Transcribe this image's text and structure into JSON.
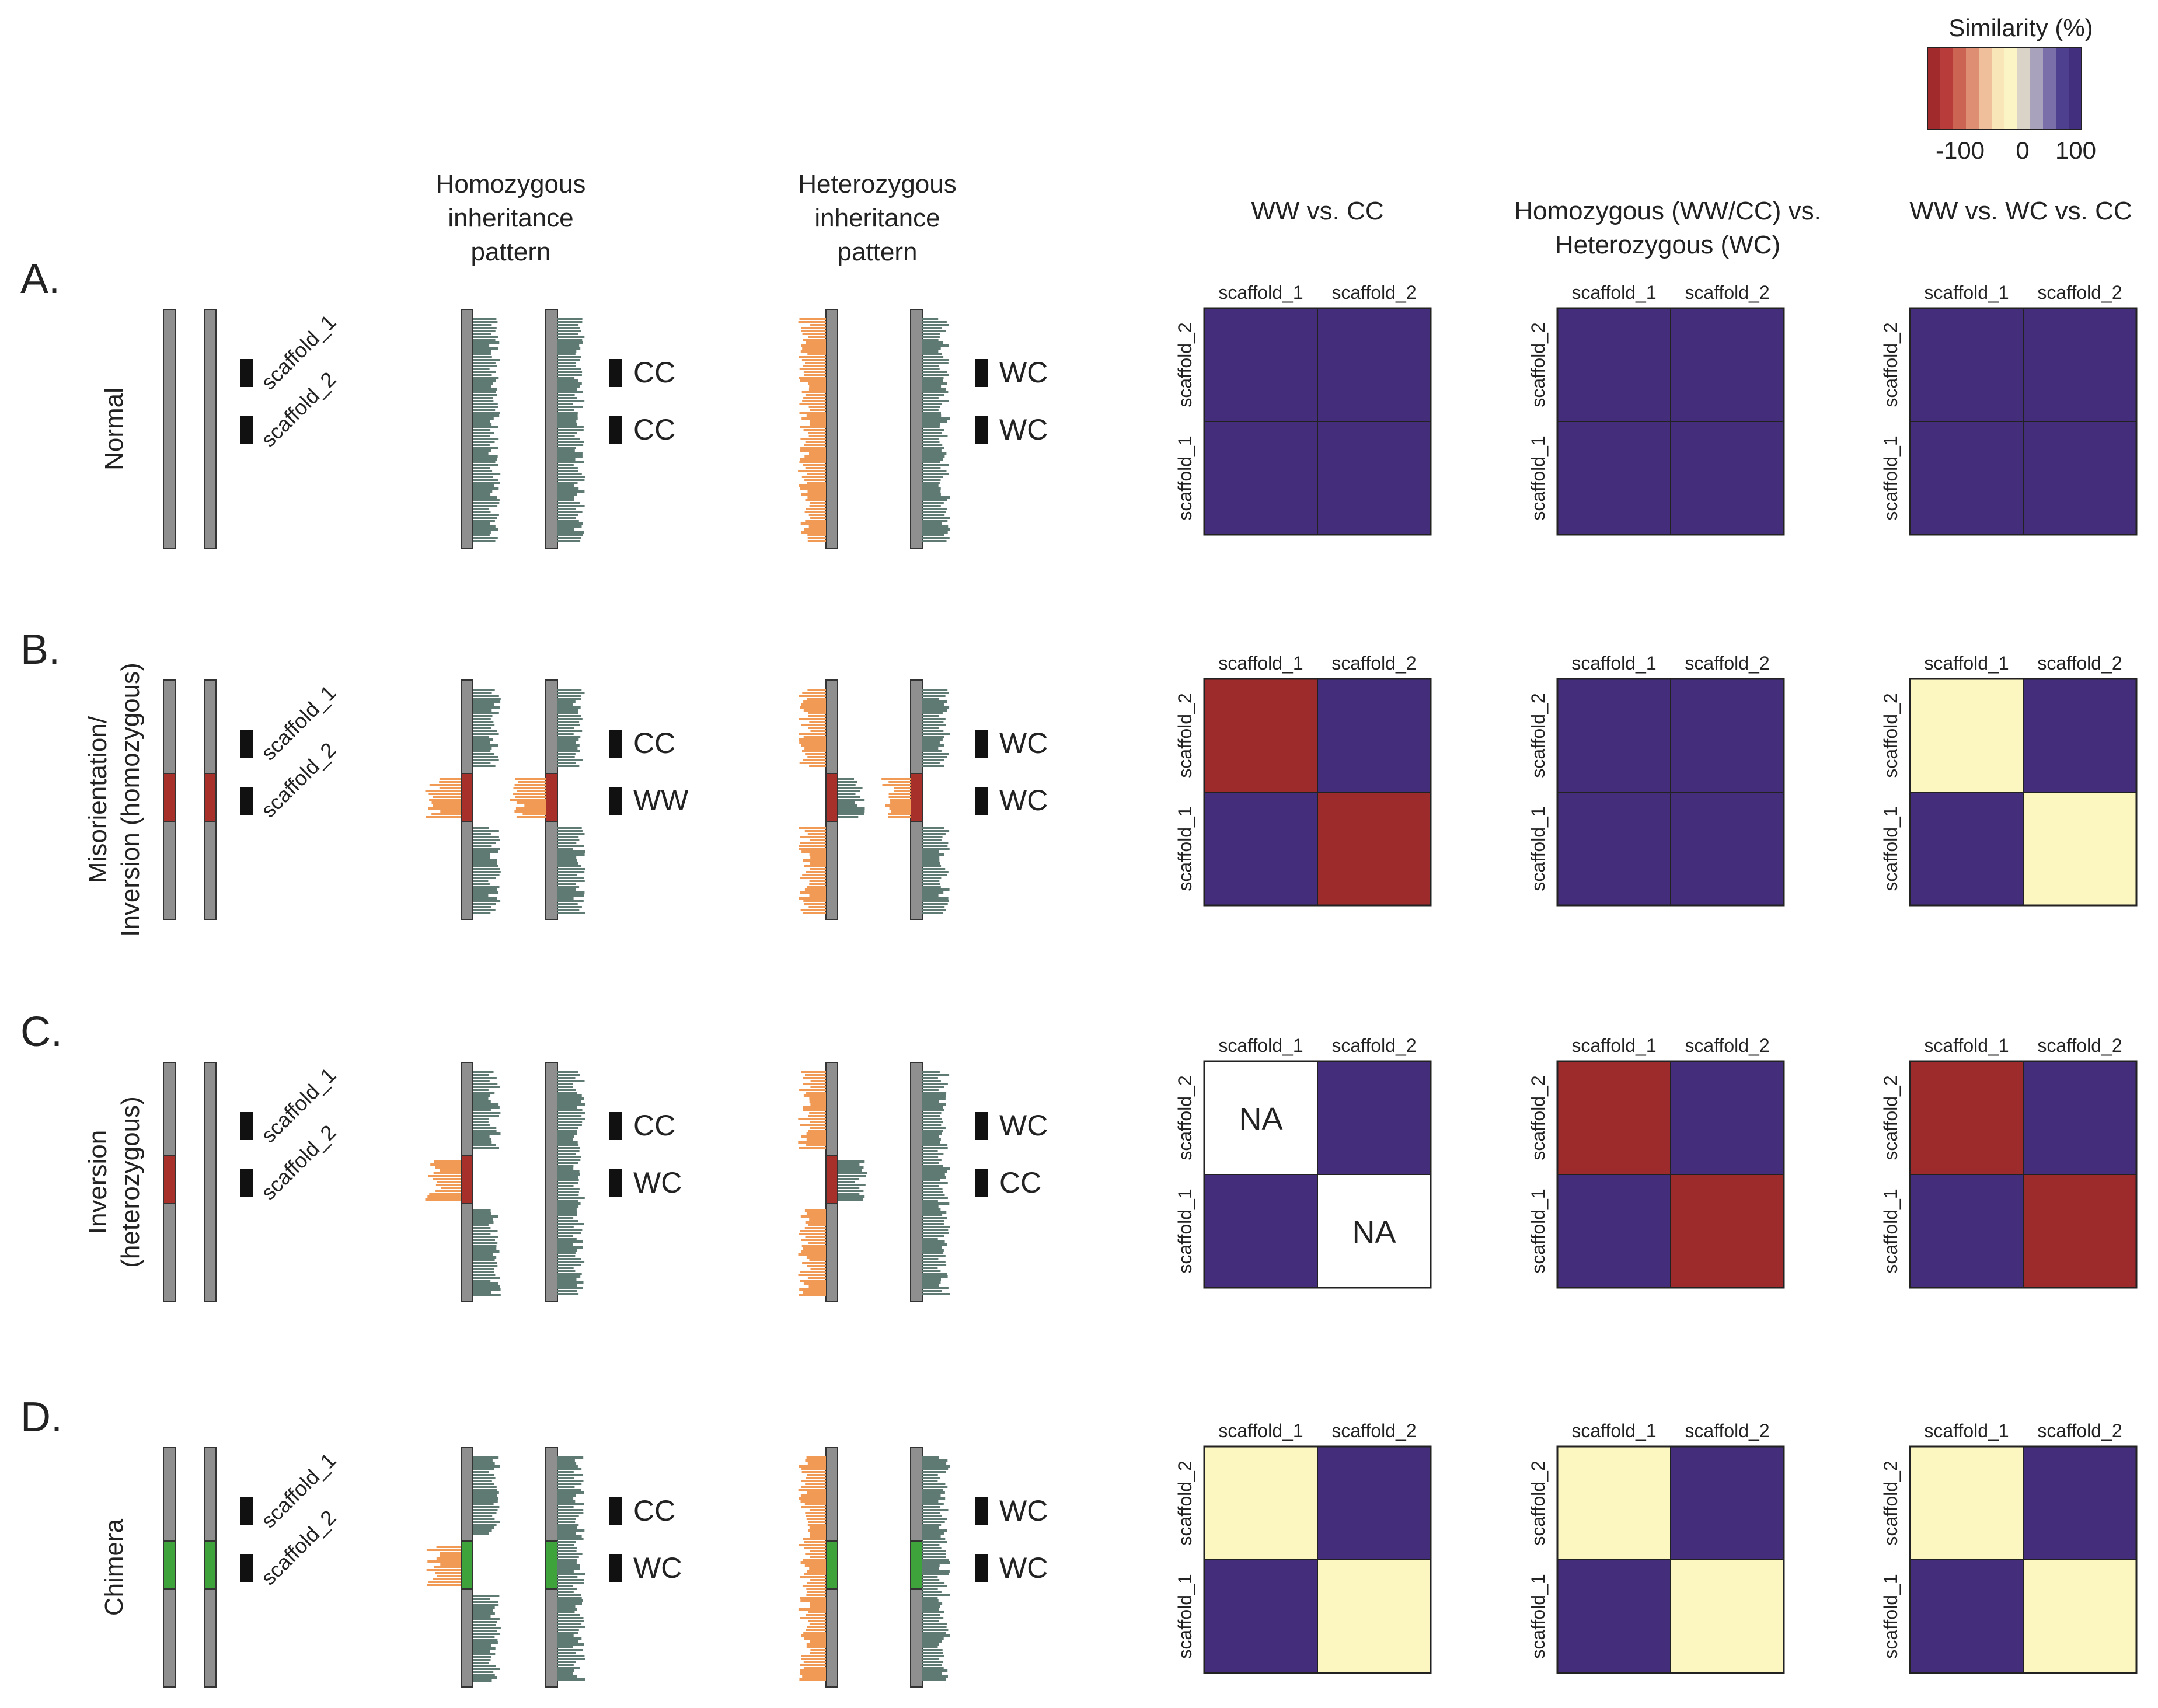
{
  "legend": {
    "title": "Similarity (%)",
    "ticks": [
      "-100",
      "0",
      "100"
    ],
    "colors": [
      "#a12a2c",
      "#b83c3a",
      "#cc6454",
      "#de8e72",
      "#eebf9a",
      "#f8e6b8",
      "#fbf5c6",
      "#d9d3c8",
      "#a9a2bd",
      "#7a6fa8",
      "#4f3f8f",
      "#422f7d"
    ]
  },
  "column_headers": {
    "homozygous": [
      "Homozygous",
      "inheritance",
      "pattern"
    ],
    "heterozygous": [
      "Heterozygous",
      "inheritance",
      "pattern"
    ],
    "matrix1": [
      "WW vs. CC"
    ],
    "matrix2": [
      "Homozygous (WW/CC) vs.",
      "Heterozygous (WC)"
    ],
    "matrix3": [
      "WW vs. WC vs. CC"
    ]
  },
  "scaffold_labels": [
    "scaffold_1",
    "scaffold_2"
  ],
  "colors": {
    "chrom_gray": "#8f8f8f",
    "reads_gray": "#5e7a72",
    "reads_orange": "#f09a55",
    "segment_red": "#a8302a",
    "segment_green": "#3fa33b",
    "cell_purple": "#442e7b",
    "cell_red": "#9e2b2c",
    "cell_yellow": "#fcf6c1",
    "cell_white": "#ffffff"
  },
  "rows": [
    {
      "letter": "A.",
      "label": [
        "Normal"
      ],
      "segment": "none",
      "hom_labels": [
        "CC",
        "CC"
      ],
      "het_labels": [
        "WC",
        "WC"
      ],
      "hom_pattern": "normal",
      "het_pattern": "normal",
      "matrices": [
        [
          [
            "purple",
            ""
          ],
          [
            "purple",
            ""
          ],
          [
            "purple",
            ""
          ],
          [
            "purple",
            ""
          ]
        ],
        [
          [
            "purple",
            ""
          ],
          [
            "purple",
            ""
          ],
          [
            "purple",
            ""
          ],
          [
            "purple",
            ""
          ]
        ],
        [
          [
            "purple",
            ""
          ],
          [
            "purple",
            ""
          ],
          [
            "purple",
            ""
          ],
          [
            "purple",
            ""
          ]
        ]
      ]
    },
    {
      "letter": "B.",
      "label": [
        "Misorientation/",
        "Inversion (homozygous)"
      ],
      "segment": "red",
      "hom_labels": [
        "CC",
        "WW"
      ],
      "het_labels": [
        "WC",
        "WC"
      ],
      "hom_pattern": "both_flip",
      "het_pattern": "het_swap",
      "matrices": [
        [
          [
            "red",
            ""
          ],
          [
            "purple",
            ""
          ],
          [
            "purple",
            ""
          ],
          [
            "red",
            ""
          ]
        ],
        [
          [
            "purple",
            ""
          ],
          [
            "purple",
            ""
          ],
          [
            "purple",
            ""
          ],
          [
            "purple",
            ""
          ]
        ],
        [
          [
            "yellow",
            ""
          ],
          [
            "purple",
            ""
          ],
          [
            "purple",
            ""
          ],
          [
            "yellow",
            ""
          ]
        ]
      ]
    },
    {
      "letter": "C.",
      "label": [
        "Inversion",
        "(heterozygous)"
      ],
      "segment": "red_left",
      "hom_labels": [
        "CC",
        "WC"
      ],
      "het_labels": [
        "WC",
        "CC"
      ],
      "hom_pattern": "left_flip",
      "het_pattern": "het_inner",
      "matrices": [
        [
          [
            "white",
            "NA"
          ],
          [
            "purple",
            ""
          ],
          [
            "purple",
            ""
          ],
          [
            "white",
            "NA"
          ]
        ],
        [
          [
            "red",
            ""
          ],
          [
            "purple",
            ""
          ],
          [
            "purple",
            ""
          ],
          [
            "red",
            ""
          ]
        ],
        [
          [
            "red",
            ""
          ],
          [
            "purple",
            ""
          ],
          [
            "purple",
            ""
          ],
          [
            "red",
            ""
          ]
        ]
      ]
    },
    {
      "letter": "D.",
      "label": [
        "Chimera"
      ],
      "segment": "green",
      "hom_labels": [
        "CC",
        "WC"
      ],
      "het_labels": [
        "WC",
        "WC"
      ],
      "hom_pattern": "left_flip_green",
      "het_pattern": "normal_green",
      "matrices": [
        [
          [
            "yellow",
            ""
          ],
          [
            "purple",
            ""
          ],
          [
            "purple",
            ""
          ],
          [
            "yellow",
            ""
          ]
        ],
        [
          [
            "yellow",
            ""
          ],
          [
            "purple",
            ""
          ],
          [
            "purple",
            ""
          ],
          [
            "yellow",
            ""
          ]
        ],
        [
          [
            "yellow",
            ""
          ],
          [
            "purple",
            ""
          ],
          [
            "purple",
            ""
          ],
          [
            "yellow",
            ""
          ]
        ]
      ]
    }
  ]
}
